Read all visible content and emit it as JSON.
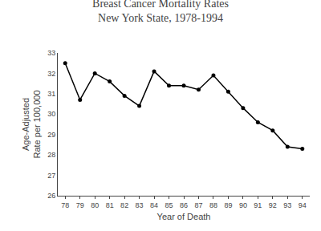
{
  "chart_data": {
    "type": "line",
    "title": "Breast Cancer Mortality Rates",
    "subtitle": "New York State, 1978-1994",
    "xlabel": "Year of Death",
    "ylabel": "Age-Adjusted\nRate per 100,000",
    "x": [
      78,
      79,
      80,
      81,
      82,
      83,
      84,
      85,
      86,
      87,
      88,
      89,
      90,
      91,
      92,
      93,
      94
    ],
    "values": [
      32.5,
      30.7,
      32.0,
      31.6,
      30.9,
      30.4,
      32.1,
      31.4,
      31.4,
      31.2,
      31.9,
      31.1,
      30.3,
      29.6,
      29.2,
      28.4,
      28.3
    ],
    "xlim": [
      77.5,
      94.5
    ],
    "xticks": [
      78,
      79,
      80,
      81,
      82,
      83,
      84,
      85,
      86,
      87,
      88,
      89,
      90,
      91,
      92,
      93,
      94
    ],
    "ylim": [
      26,
      33
    ],
    "yticks": [
      26,
      27,
      28,
      29,
      30,
      31,
      32,
      33
    ],
    "color": "#000000",
    "marker": "circle",
    "line_style": "solid",
    "grid": false
  }
}
